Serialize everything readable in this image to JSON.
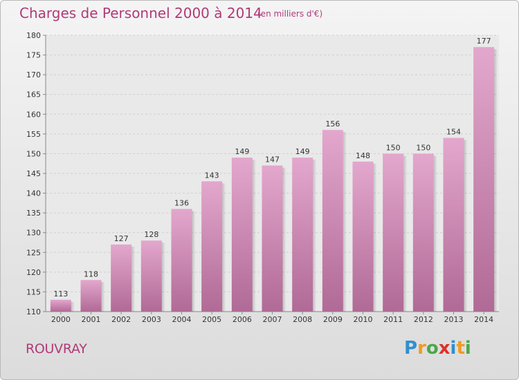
{
  "title": "Charges de Personnel 2000 à 2014",
  "subtitle": "(en milliers d'€)",
  "town": "ROUVRAY",
  "logo": {
    "text": "Proxiti",
    "letters": [
      {
        "ch": "P",
        "color": "#2f8fd0"
      },
      {
        "ch": "r",
        "color": "#f29a1e"
      },
      {
        "ch": "o",
        "color": "#4aa84a"
      },
      {
        "ch": "x",
        "color": "#e0302a"
      },
      {
        "ch": "i",
        "color": "#2f8fd0"
      },
      {
        "ch": "t",
        "color": "#f29a1e"
      },
      {
        "ch": "i",
        "color": "#4aa84a"
      }
    ]
  },
  "chart_data": {
    "type": "bar",
    "categories": [
      "2000",
      "2001",
      "2002",
      "2003",
      "2004",
      "2005",
      "2006",
      "2007",
      "2008",
      "2009",
      "2010",
      "2011",
      "2012",
      "2013",
      "2014"
    ],
    "values": [
      113,
      118,
      127,
      128,
      136,
      143,
      149,
      147,
      149,
      156,
      148,
      150,
      150,
      154,
      177
    ],
    "ylim": [
      110,
      180
    ],
    "yticks": [
      110,
      115,
      120,
      125,
      130,
      135,
      140,
      145,
      150,
      155,
      160,
      165,
      170,
      175,
      180
    ],
    "grid": true,
    "bar_color_top": "#e3a7cd",
    "bar_color_bottom": "#b06a96"
  }
}
